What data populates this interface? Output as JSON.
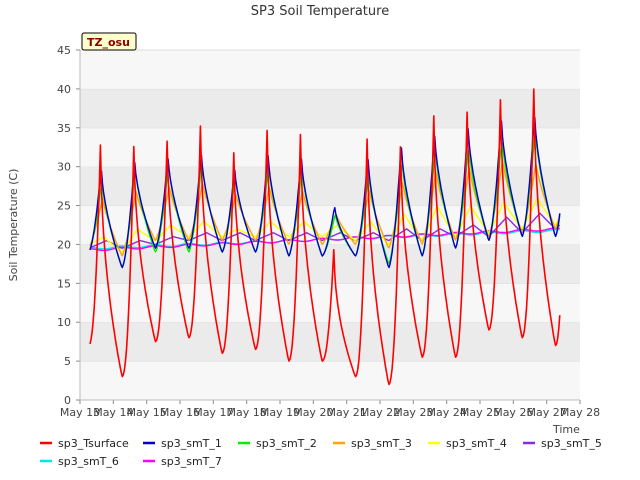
{
  "chart_data": {
    "type": "line",
    "title": "SP3 Soil Temperature",
    "xlabel": "Time",
    "ylabel": "Soil Temperature (C)",
    "ylim": [
      0,
      45
    ],
    "xlim": [
      13,
      28
    ],
    "yticks": [
      0,
      5,
      10,
      15,
      20,
      25,
      30,
      35,
      40,
      45
    ],
    "xtick_labels": [
      "May 13",
      "May 14",
      "May 15",
      "May 16",
      "May 17",
      "May 18",
      "May 19",
      "May 20",
      "May 21",
      "May 22",
      "May 23",
      "May 24",
      "May 25",
      "May 26",
      "May 27",
      "May 28"
    ],
    "annotation": "TZ_osu",
    "grid": "horizontal bands",
    "legend_position": "bottom",
    "x_start": 13.3,
    "x_end": 27.4,
    "step_days": 0.125,
    "series": [
      {
        "name": "sp3_Tsurface",
        "color": "#ff0000",
        "min": [
          7.0,
          3.0,
          7.5,
          8.0,
          6.0,
          6.5,
          5.0,
          5.0,
          3.0,
          2.0,
          5.5,
          5.5,
          9.0,
          8.0,
          7.0,
          8.5
        ],
        "max": [
          34.0,
          34.0,
          34.5,
          36.5,
          33.0,
          36.0,
          35.5,
          20.0,
          35.0,
          34.0,
          38.0,
          38.5,
          40.0,
          41.5
        ]
      },
      {
        "name": "sp3_smT_1",
        "color": "#0000cc",
        "min": [
          19.0,
          17.0,
          19.5,
          19.5,
          19.0,
          19.0,
          18.5,
          18.5,
          18.5,
          17.0,
          18.5,
          19.5,
          20.5,
          21.0,
          21.0,
          23.0
        ],
        "max": [
          30.0,
          31.0,
          31.5,
          32.0,
          30.0,
          32.0,
          31.5,
          25.0,
          31.5,
          33.0,
          34.5,
          35.5,
          36.5,
          37.0
        ]
      },
      {
        "name": "sp3_smT_2",
        "color": "#00ee00",
        "min": [
          19.0,
          17.0,
          19.0,
          19.0,
          19.0,
          19.0,
          18.5,
          18.5,
          18.5,
          17.5,
          18.5,
          19.5,
          20.5,
          21.0,
          21.0,
          23.0
        ],
        "max": [
          28.5,
          30.0,
          30.5,
          31.0,
          29.0,
          30.5,
          30.0,
          24.0,
          29.5,
          31.0,
          32.5,
          33.0,
          34.0,
          35.0
        ]
      },
      {
        "name": "sp3_smT_3",
        "color": "#ffa500",
        "min": [
          19.5,
          18.5,
          20.5,
          20.5,
          20.5,
          20.5,
          20.0,
          20.0,
          20.0,
          19.5,
          20.0,
          20.5,
          21.0,
          21.5,
          22.0,
          23.5
        ],
        "max": [
          26.0,
          27.0,
          27.5,
          28.0,
          26.5,
          27.5,
          27.0,
          24.0,
          27.0,
          28.0,
          29.5,
          30.0,
          31.0,
          30.5
        ]
      },
      {
        "name": "sp3_smT_4",
        "color": "#ffff00",
        "min": [
          20.0,
          19.0,
          20.5,
          21.0,
          21.0,
          21.0,
          21.0,
          21.0,
          20.5,
          20.0,
          20.5,
          21.0,
          21.5,
          22.0,
          22.5,
          24.0
        ],
        "max": [
          21.0,
          22.0,
          22.5,
          23.0,
          22.0,
          23.0,
          23.0,
          22.5,
          23.0,
          24.0,
          25.0,
          25.0,
          25.5,
          26.0
        ]
      },
      {
        "name": "sp3_smT_5",
        "color": "#8a2be2",
        "min": [
          19.5,
          19.5,
          20.0,
          20.5,
          20.5,
          20.5,
          20.5,
          20.5,
          20.5,
          20.5,
          20.5,
          21.0,
          21.0,
          21.5,
          22.0,
          23.0
        ],
        "max": [
          20.5,
          20.5,
          21.0,
          21.5,
          21.5,
          21.5,
          21.5,
          21.5,
          21.5,
          22.0,
          22.0,
          22.5,
          23.5,
          24.0
        ]
      },
      {
        "name": "sp3_smT_6",
        "color": "#00e5ee",
        "start": 19.5,
        "end": 21.8
      },
      {
        "name": "sp3_smT_7",
        "color": "#ff00ff",
        "start": 19.3,
        "end": 22.0
      }
    ]
  }
}
